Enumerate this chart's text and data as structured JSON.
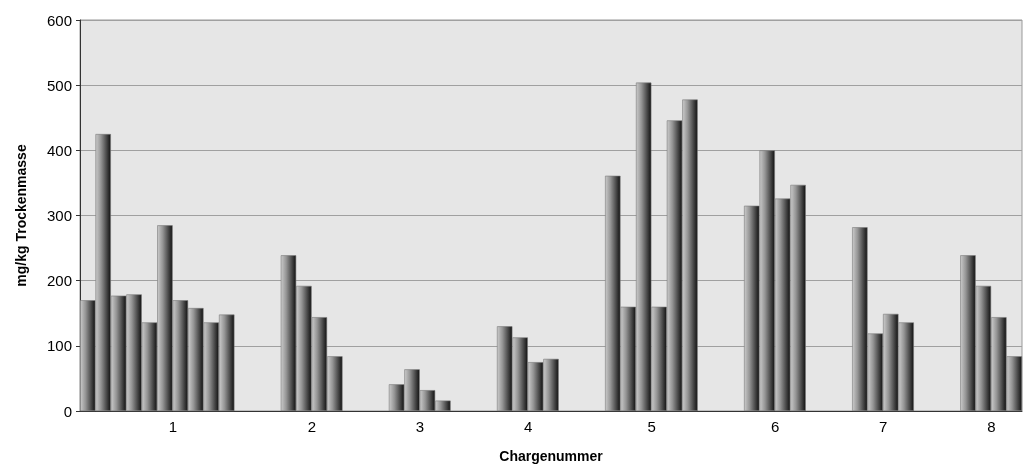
{
  "chart_data": {
    "type": "bar",
    "xlabel": "Chargenummer",
    "ylabel": "mg/kg Trockenmasse",
    "categories": [
      null,
      null,
      null,
      null,
      null,
      "1",
      null,
      null,
      null,
      null,
      null,
      null,
      null,
      null,
      "2",
      null,
      null,
      null,
      null,
      null,
      null,
      "3",
      null,
      null,
      null,
      null,
      null,
      null,
      "4",
      null,
      null,
      null,
      null,
      null,
      null,
      null,
      "5",
      null,
      null,
      null,
      null,
      null,
      null,
      null,
      "6",
      null,
      null,
      null,
      null,
      null,
      null,
      "7",
      null,
      null,
      null,
      null,
      null,
      null,
      "8",
      null,
      null
    ],
    "values": [
      170,
      425,
      177,
      179,
      136,
      285,
      170,
      158,
      136,
      148,
      null,
      null,
      null,
      239,
      192,
      144,
      84,
      null,
      null,
      null,
      41,
      64,
      32,
      16,
      null,
      null,
      null,
      130,
      113,
      75,
      80,
      null,
      null,
      null,
      361,
      160,
      504,
      160,
      446,
      478,
      null,
      null,
      null,
      315,
      400,
      326,
      347,
      null,
      null,
      null,
      282,
      119,
      149,
      136,
      null,
      null,
      null,
      239,
      192,
      144,
      84
    ],
    "color": "#7a7a7a",
    "ylim": [
      0,
      600
    ],
    "yticks": [
      0,
      100,
      200,
      300,
      400,
      500,
      600
    ],
    "grid": "y"
  }
}
